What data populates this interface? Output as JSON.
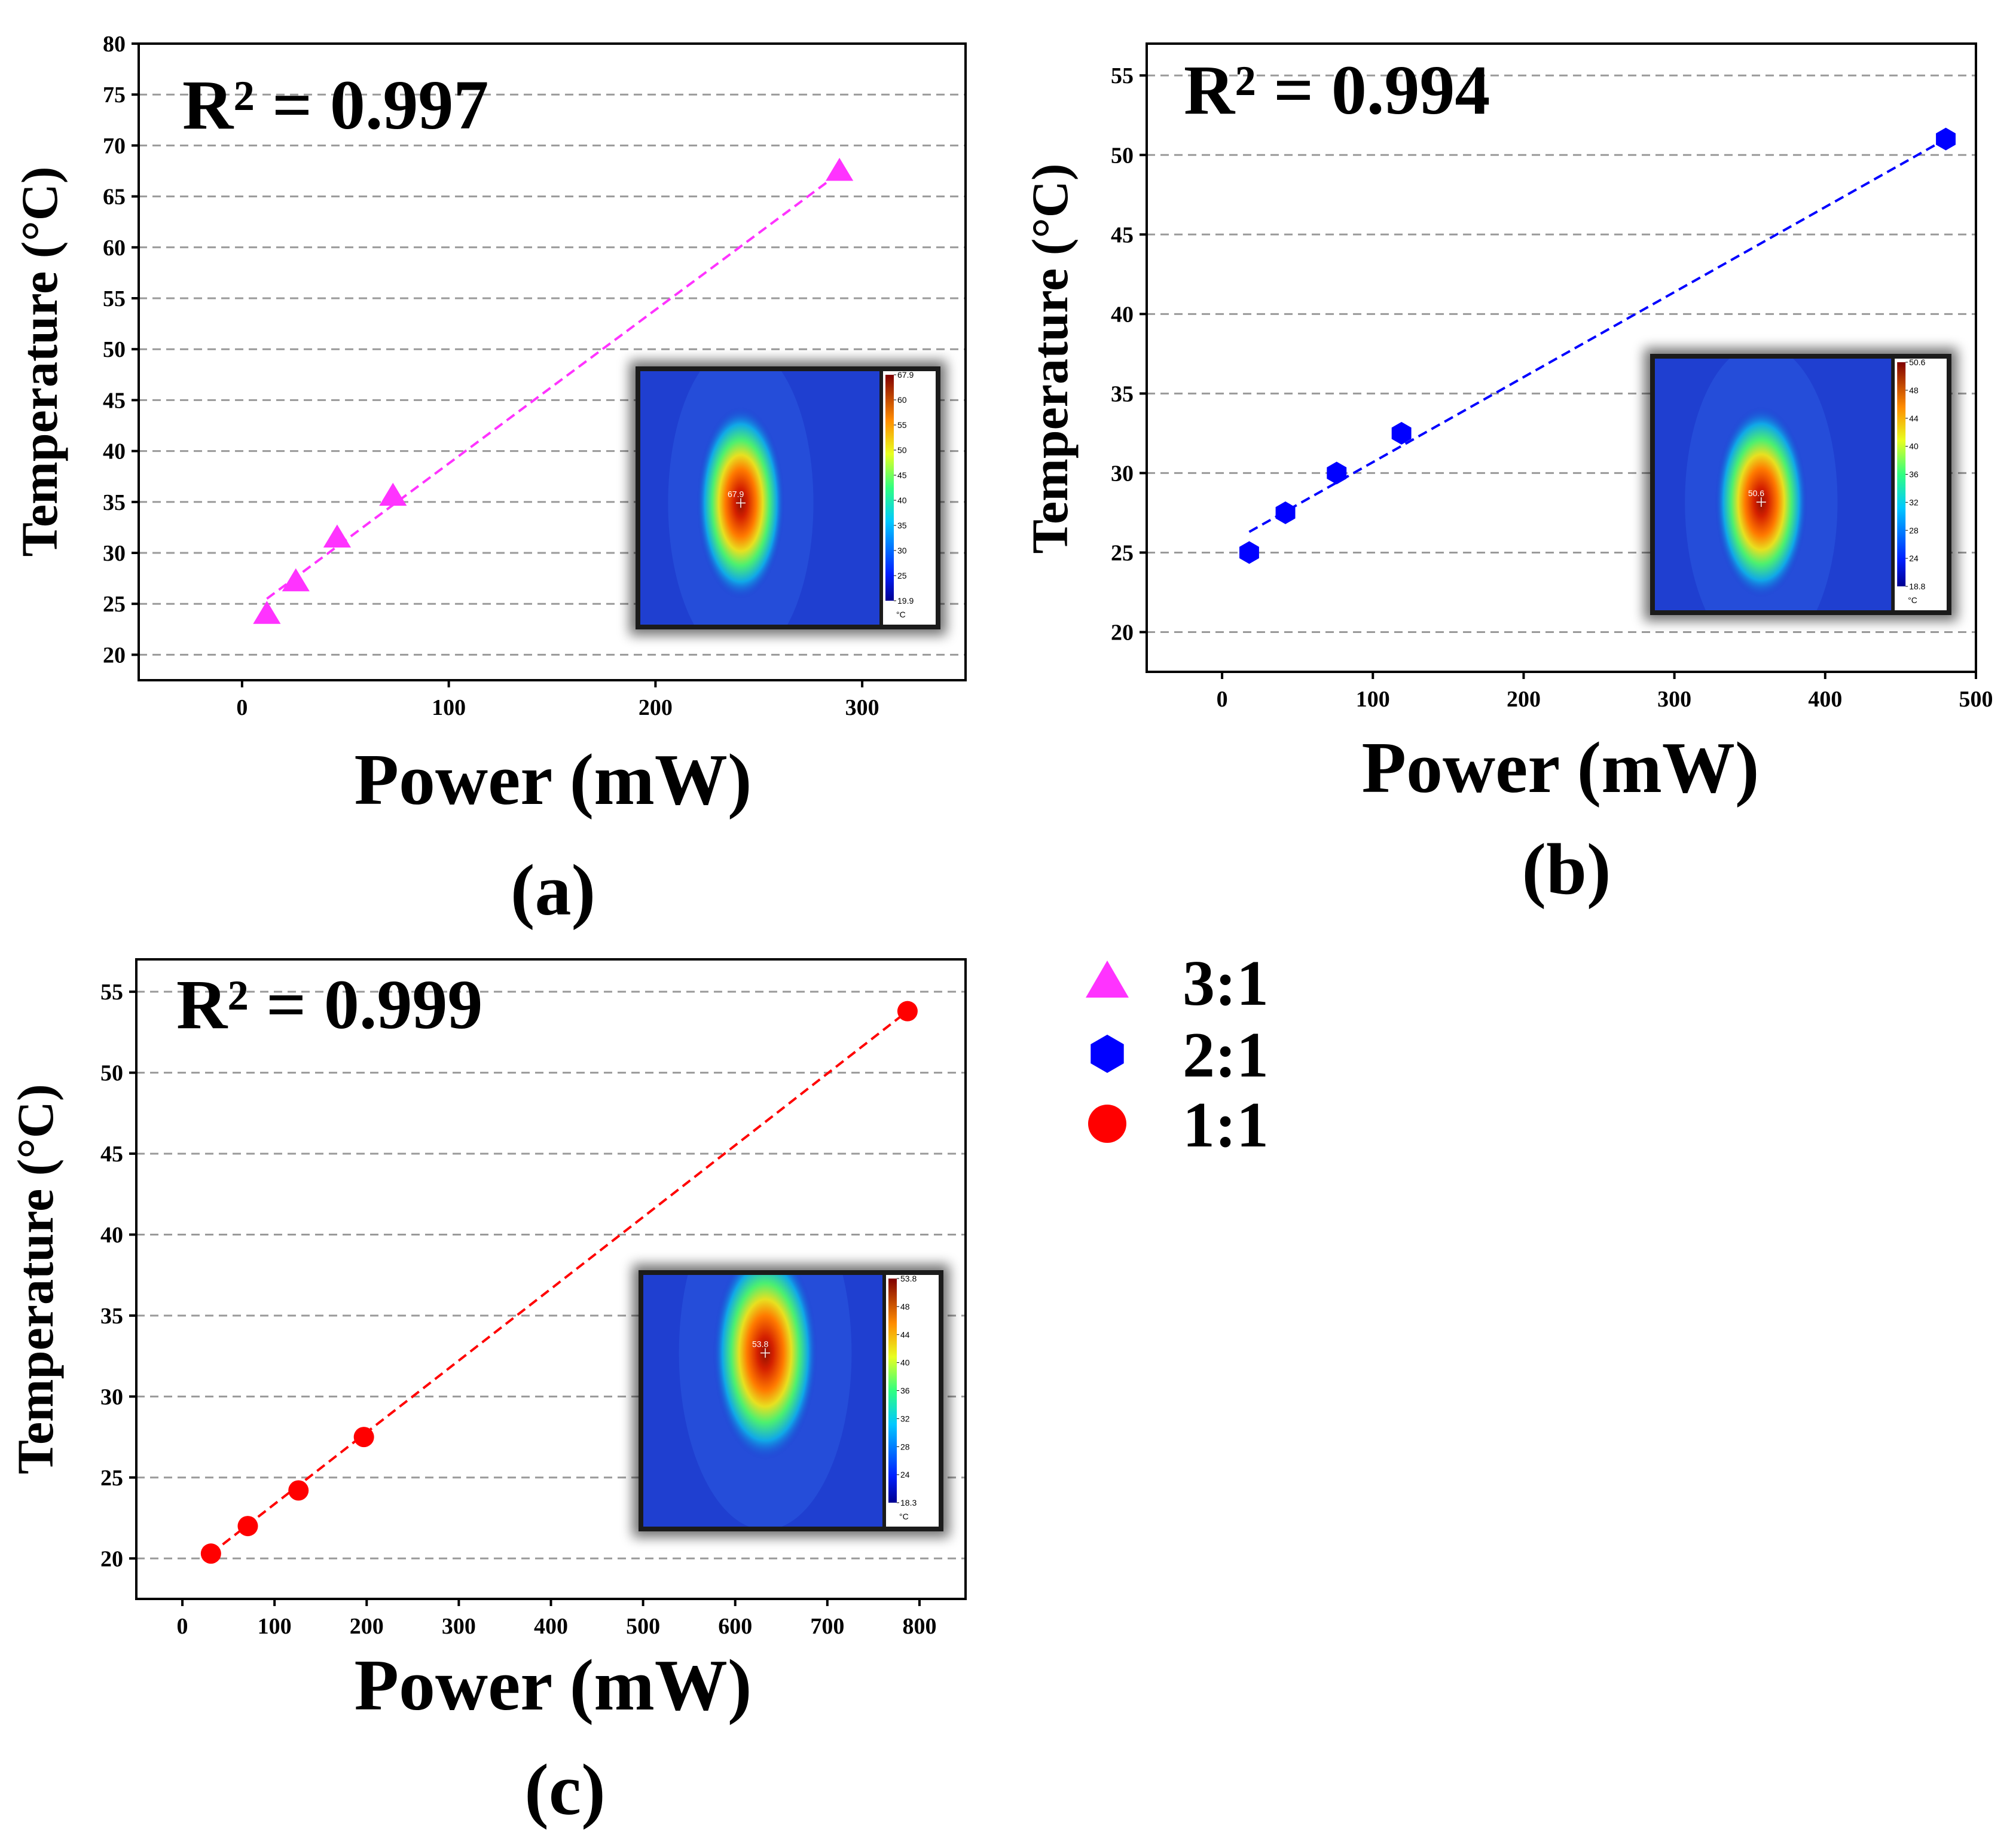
{
  "figure": {
    "legend": [
      {
        "label": "3:1",
        "color": "#ff33ff",
        "marker": "triangle-icon"
      },
      {
        "label": "2:1",
        "color": "#0000ff",
        "marker": "hexagon-icon"
      },
      {
        "label": "1:1",
        "color": "#ff0000",
        "marker": "circle-icon"
      }
    ]
  },
  "chart_data": [
    {
      "panel": "(a)",
      "type": "scatter",
      "series_name": "3:1",
      "color": "#ff33ff",
      "marker": "triangle",
      "xlabel": "Power (mW)",
      "ylabel": "Temperature (°C)",
      "xlim": [
        -50,
        350
      ],
      "ylim": [
        17.5,
        80
      ],
      "xticks": [
        0,
        100,
        200,
        300
      ],
      "yticks": [
        20,
        25,
        30,
        35,
        40,
        45,
        50,
        55,
        60,
        65,
        70,
        75,
        80
      ],
      "gridlines": "horizontal dashed",
      "r2_label": "R² = 0.997",
      "x": [
        12,
        26,
        46,
        73,
        289
      ],
      "y": [
        24.0,
        27.2,
        31.5,
        35.6,
        67.5
      ],
      "fit": {
        "x": [
          12,
          289
        ],
        "y": [
          25.5,
          67.3
        ]
      },
      "inset": {
        "type": "thermal-image",
        "colorbar_max": "67.9",
        "colorbar_ticks": [
          "60",
          "55",
          "50",
          "45",
          "40",
          "35",
          "30",
          "25"
        ],
        "colorbar_min": "19.9",
        "unit": "°C",
        "spot_center": [
          0.42,
          0.52
        ],
        "spot_radius": [
          0.16,
          0.33
        ]
      }
    },
    {
      "panel": "(b)",
      "type": "scatter",
      "series_name": "2:1",
      "color": "#0000ff",
      "marker": "hexagon",
      "xlabel": "Power (mW)",
      "ylabel": "Temperature (°C)",
      "xlim": [
        -50,
        500
      ],
      "ylim": [
        17.5,
        57
      ],
      "xticks": [
        0,
        100,
        200,
        300,
        400,
        500
      ],
      "yticks": [
        20,
        25,
        30,
        35,
        40,
        45,
        50,
        55
      ],
      "gridlines": "horizontal dashed",
      "r2_label": "R² = 0.994",
      "x": [
        18,
        42,
        76,
        119,
        480
      ],
      "y": [
        25.0,
        27.5,
        30.0,
        32.5,
        51.0
      ],
      "fit": {
        "x": [
          18,
          480
        ],
        "y": [
          26.3,
          51.0
        ]
      },
      "inset": {
        "type": "thermal-image",
        "colorbar_max": "50.6",
        "colorbar_ticks": [
          "48",
          "44",
          "40",
          "36",
          "32",
          "28",
          "24"
        ],
        "colorbar_min": "18.8",
        "unit": "°C",
        "spot_center": [
          0.45,
          0.57
        ],
        "spot_radius": [
          0.17,
          0.33
        ]
      }
    },
    {
      "panel": "(c)",
      "type": "scatter",
      "series_name": "1:1",
      "color": "#ff0000",
      "marker": "circle",
      "xlabel": "Power (mW)",
      "ylabel": "Temperature (°C)",
      "xlim": [
        -50,
        850
      ],
      "ylim": [
        17.5,
        57
      ],
      "xticks": [
        0,
        100,
        200,
        300,
        400,
        500,
        600,
        700,
        800
      ],
      "yticks": [
        20,
        25,
        30,
        35,
        40,
        45,
        50,
        55
      ],
      "gridlines": "horizontal dashed",
      "r2_label": "R² = 0.999",
      "x": [
        31,
        71,
        126,
        197,
        787
      ],
      "y": [
        20.3,
        22.0,
        24.2,
        27.5,
        53.8
      ],
      "fit": {
        "x": [
          31,
          787
        ],
        "y": [
          20.3,
          53.8
        ]
      },
      "inset": {
        "type": "thermal-image",
        "colorbar_max": "53.8",
        "colorbar_ticks": [
          "48",
          "44",
          "40",
          "36",
          "32",
          "28",
          "24"
        ],
        "colorbar_min": "18.3",
        "unit": "°C",
        "spot_center": [
          0.51,
          0.31
        ],
        "spot_radius": [
          0.19,
          0.37
        ]
      }
    }
  ]
}
